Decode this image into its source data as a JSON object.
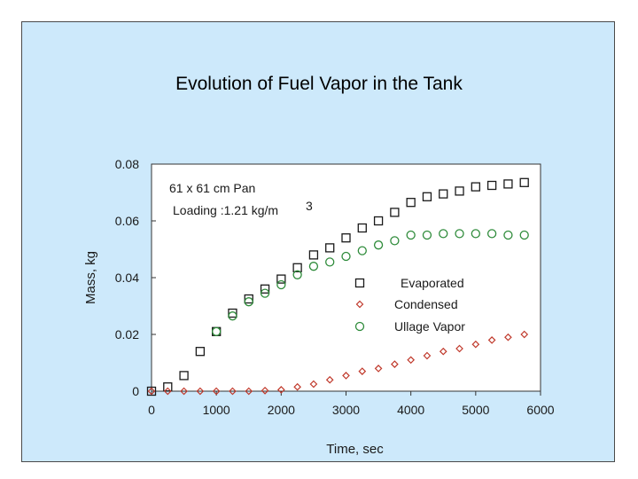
{
  "chart_data": {
    "type": "scatter",
    "title": "Evolution of Fuel Vapor in the Tank",
    "xlabel": "Time, sec",
    "ylabel": "Mass, kg",
    "xlim": [
      0,
      6000
    ],
    "ylim": [
      0,
      0.08
    ],
    "x_ticks": [
      0,
      1000,
      2000,
      3000,
      4000,
      5000,
      6000
    ],
    "x_tick_labels": [
      "0",
      "1000",
      "2000",
      "3000",
      "4000",
      "5000",
      "6000"
    ],
    "y_ticks": [
      0,
      0.02,
      0.04,
      0.06,
      0.08
    ],
    "y_tick_labels": [
      "0",
      "0.02",
      "0.04",
      "0.06",
      "0.08"
    ],
    "grid": false,
    "legend_position": "center-right",
    "annotations": {
      "line1": "61 x 61  cm Pan",
      "line2": "Loading :1.21 kg/m",
      "superscript": "3"
    },
    "series": [
      {
        "name": "Evaporated",
        "marker": "square",
        "color": "#1a1a1a",
        "x": [
          0,
          250,
          500,
          750,
          1000,
          1250,
          1500,
          1750,
          2000,
          2250,
          2500,
          2750,
          3000,
          3250,
          3500,
          3750,
          4000,
          4250,
          4500,
          4750,
          5000,
          5250,
          5500,
          5750
        ],
        "y": [
          0,
          0.0015,
          0.0055,
          0.014,
          0.021,
          0.0275,
          0.0325,
          0.036,
          0.0395,
          0.0435,
          0.048,
          0.0505,
          0.054,
          0.0575,
          0.06,
          0.063,
          0.0665,
          0.0685,
          0.0695,
          0.0705,
          0.072,
          0.0725,
          0.073,
          0.0735
        ]
      },
      {
        "name": "Condensed",
        "marker": "diamond",
        "color": "#c0392b",
        "x": [
          0,
          250,
          500,
          750,
          1000,
          1250,
          1500,
          1750,
          2000,
          2250,
          2500,
          2750,
          3000,
          3250,
          3500,
          3750,
          4000,
          4250,
          4500,
          4750,
          5000,
          5250,
          5500,
          5750
        ],
        "y": [
          0,
          0,
          0,
          0,
          0,
          0,
          0,
          0.0002,
          0.0005,
          0.0015,
          0.0025,
          0.004,
          0.0055,
          0.007,
          0.008,
          0.0095,
          0.011,
          0.0125,
          0.014,
          0.015,
          0.0165,
          0.018,
          0.019,
          0.02
        ]
      },
      {
        "name": "Ullage Vapor",
        "marker": "circle",
        "color": "#2e8b3a",
        "x": [
          1000,
          1250,
          1500,
          1750,
          2000,
          2250,
          2500,
          2750,
          3000,
          3250,
          3500,
          3750,
          4000,
          4250,
          4500,
          4750,
          5000,
          5250,
          5500,
          5750
        ],
        "y": [
          0.021,
          0.0265,
          0.0315,
          0.0345,
          0.0375,
          0.041,
          0.044,
          0.0455,
          0.0475,
          0.0495,
          0.0515,
          0.053,
          0.055,
          0.055,
          0.0555,
          0.0555,
          0.0555,
          0.0555,
          0.055,
          0.055
        ]
      }
    ]
  }
}
